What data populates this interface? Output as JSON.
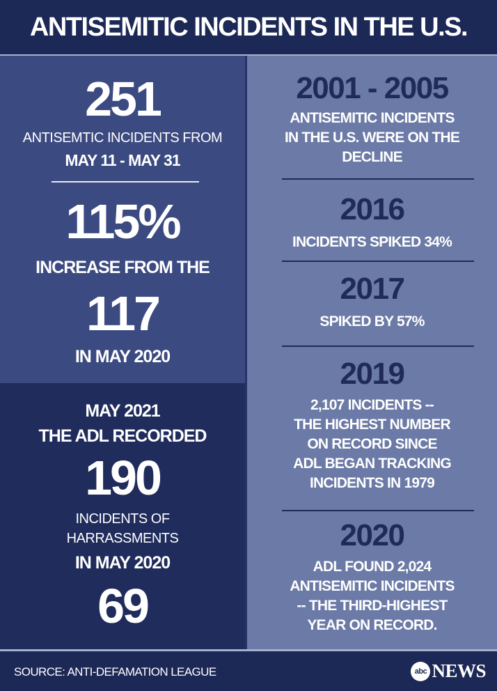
{
  "header": {
    "title": "ANTISEMITIC INCIDENTS IN THE U.S."
  },
  "left_top": {
    "stat1_number": "251",
    "stat1_line1": "ANTISEMTIC INCIDENTS FROM",
    "stat1_line2": "MAY 11 - MAY 31",
    "stat2_number": "115%",
    "stat2_line1": "INCREASE FROM THE",
    "stat2_number2": "117",
    "stat2_line2": "IN MAY 2020"
  },
  "left_bottom": {
    "line1": "MAY 2021",
    "line2": "THE ADL RECORDED",
    "number1": "190",
    "line3": "INCIDENTS OF",
    "line4": "HARRASSMENTS",
    "line5": "IN MAY 2020",
    "number2": "69"
  },
  "timeline": [
    {
      "year": "2001 - 2005",
      "lines": [
        "ANTISEMITIC INCIDENTS",
        "IN THE U.S. WERE ON THE",
        "DECLINE"
      ]
    },
    {
      "year": "2016",
      "lines": [
        "INCIDENTS SPIKED 34%"
      ]
    },
    {
      "year": "2017",
      "lines": [
        "SPIKED BY 57%"
      ]
    },
    {
      "year": "2019",
      "lines": [
        "2,107 INCIDENTS --",
        "THE HIGHEST NUMBER",
        "ON RECORD SINCE",
        "ADL BEGAN TRACKING",
        "INCIDENTS IN 1979"
      ]
    },
    {
      "year": "2020",
      "lines": [
        "ADL FOUND 2,024",
        "ANTISEMITIC INCIDENTS",
        "-- THE THIRD-HIGHEST",
        "YEAR ON RECORD."
      ]
    }
  ],
  "footer": {
    "source": "SOURCE: ANTI-DEFAMATION LEAGUE",
    "logo_circle": "abc",
    "logo_text": "NEWS"
  },
  "colors": {
    "header_bg": "#1c2855",
    "left_top_bg": "#3b4a80",
    "left_bottom_bg": "#1f2c5c",
    "right_bg": "#6b7aa6",
    "year_text": "#1f2a58"
  }
}
